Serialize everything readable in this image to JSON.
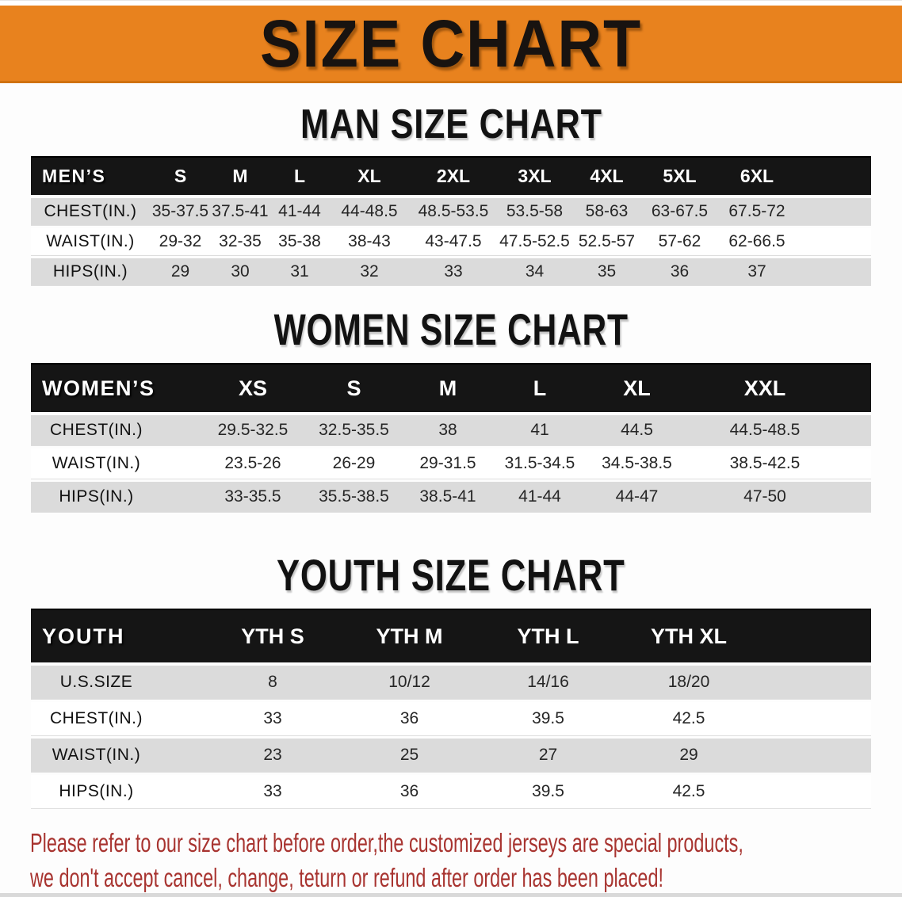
{
  "banner": {
    "title": "SIZE CHART"
  },
  "colors": {
    "banner_bg": "#e8821e",
    "header_band": "#151515",
    "row_gray": "#dbdbdb",
    "disclaimer_red": "#a83430"
  },
  "men": {
    "heading": "MAN SIZE CHART",
    "corner": "MEN’S",
    "sizes": [
      "S",
      "M",
      "L",
      "XL",
      "2XL",
      "3XL",
      "4XL",
      "5XL",
      "6XL"
    ],
    "rows": [
      {
        "label": "CHEST(IN.)",
        "values": [
          "35-37.5",
          "37.5-41",
          "41-44",
          "44-48.5",
          "48.5-53.5",
          "53.5-58",
          "58-63",
          "63-67.5",
          "67.5-72"
        ]
      },
      {
        "label": "WAIST(IN.)",
        "values": [
          "29-32",
          "32-35",
          "35-38",
          "38-43",
          "43-47.5",
          "47.5-52.5",
          "52.5-57",
          "57-62",
          "62-66.5"
        ]
      },
      {
        "label": "HIPS(IN.)",
        "values": [
          "29",
          "30",
          "31",
          "32",
          "33",
          "34",
          "35",
          "36",
          "37"
        ]
      }
    ]
  },
  "women": {
    "heading": "WOMEN SIZE CHART",
    "corner": "WOMEN’S",
    "sizes": [
      "XS",
      "S",
      "M",
      "L",
      "XL",
      "XXL"
    ],
    "rows": [
      {
        "label": "CHEST(IN.)",
        "values": [
          "29.5-32.5",
          "32.5-35.5",
          "38",
          "41",
          "44.5",
          "44.5-48.5"
        ]
      },
      {
        "label": "WAIST(IN.)",
        "values": [
          "23.5-26",
          "26-29",
          "29-31.5",
          "31.5-34.5",
          "34.5-38.5",
          "38.5-42.5"
        ]
      },
      {
        "label": "HIPS(IN.)",
        "values": [
          "33-35.5",
          "35.5-38.5",
          "38.5-41",
          "41-44",
          "44-47",
          "47-50"
        ]
      }
    ]
  },
  "youth": {
    "heading": "YOUTH SIZE CHART",
    "corner": "YOUTH",
    "sizes": [
      "YTH S",
      "YTH M",
      "YTH L",
      "YTH XL"
    ],
    "rows": [
      {
        "label": "U.S.SIZE",
        "values": [
          "8",
          "10/12",
          "14/16",
          "18/20"
        ]
      },
      {
        "label": "CHEST(IN.)",
        "values": [
          "33",
          "36",
          "39.5",
          "42.5"
        ]
      },
      {
        "label": "WAIST(IN.)",
        "values": [
          "23",
          "25",
          "27",
          "29"
        ]
      },
      {
        "label": "HIPS(IN.)",
        "values": [
          "33",
          "36",
          "39.5",
          "42.5"
        ]
      }
    ]
  },
  "disclaimer": {
    "line1": "Please refer to our size chart before order,the customized jerseys are special products,",
    "line2": "we don't accept cancel, change, teturn or refund after order has been placed!"
  }
}
